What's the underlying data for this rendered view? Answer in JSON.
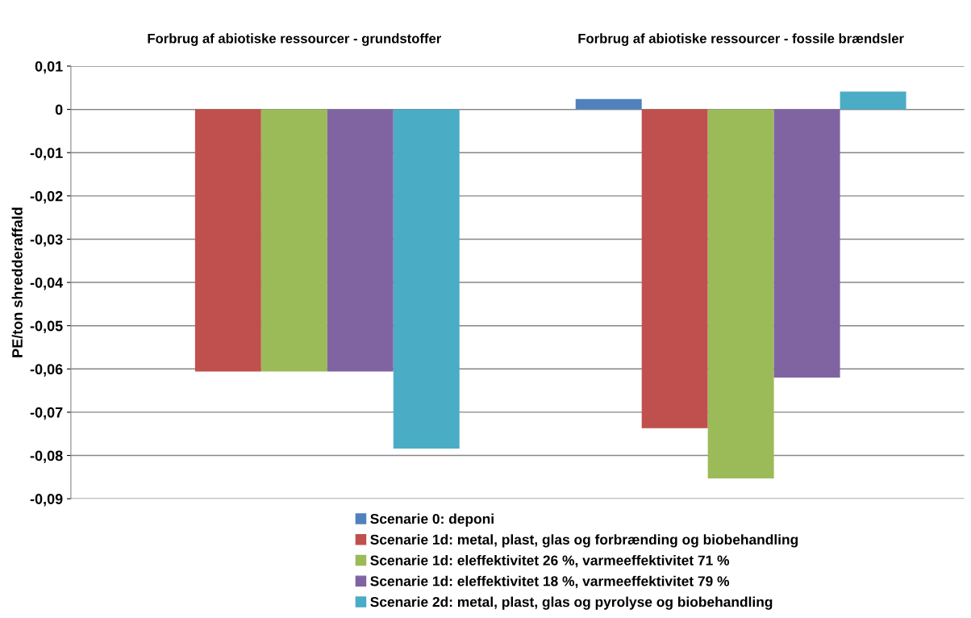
{
  "chart_data": {
    "type": "bar",
    "ylabel": "PE/ton shredderaffald",
    "categories": [
      "Forbrug af abiotiske ressourcer - grundstoffer",
      "Forbrug af abiotiske ressourcer - fossile brændsler"
    ],
    "series": [
      {
        "name": "Scenarie 0: deponi",
        "color": "#4f81bd",
        "values": [
          null,
          0.0024
        ]
      },
      {
        "name": "Scenarie 1d: metal, plast, glas og forbrænding og biobehandling",
        "color": "#c0504d",
        "values": [
          -0.0606,
          -0.0737
        ]
      },
      {
        "name": "Scenarie 1d: eleffektivitet 26 %, varmeeffektivitet 71 %",
        "color": "#9bbb59",
        "values": [
          -0.0606,
          -0.0853
        ]
      },
      {
        "name": "Scenarie 1d: eleffektivitet 18 %, varmeeffektivitet 79 %",
        "color": "#8064a2",
        "values": [
          -0.0606,
          -0.062
        ]
      },
      {
        "name": "Scenarie 2d: metal, plast, glas og pyrolyse og biobehandling",
        "color": "#4bacc6",
        "values": [
          -0.0784,
          0.0041
        ]
      }
    ],
    "ylim": [
      -0.09,
      0.01
    ],
    "yticks": [
      {
        "value": 0.01,
        "label": "0,01"
      },
      0,
      {
        "value": -0.01,
        "label": "-0,01"
      },
      {
        "value": -0.02,
        "label": "-0,02"
      },
      {
        "value": -0.03,
        "label": "-0,03"
      },
      {
        "value": -0.04,
        "label": "-0,04"
      },
      {
        "value": -0.05,
        "label": "-0,05"
      },
      {
        "value": -0.06,
        "label": "-0,06"
      },
      {
        "value": -0.07,
        "label": "-0,07"
      },
      {
        "value": -0.08,
        "label": "-0,08"
      },
      {
        "value": -0.09,
        "label": "-0,09"
      }
    ],
    "grid": "y",
    "legend": "bottom"
  }
}
